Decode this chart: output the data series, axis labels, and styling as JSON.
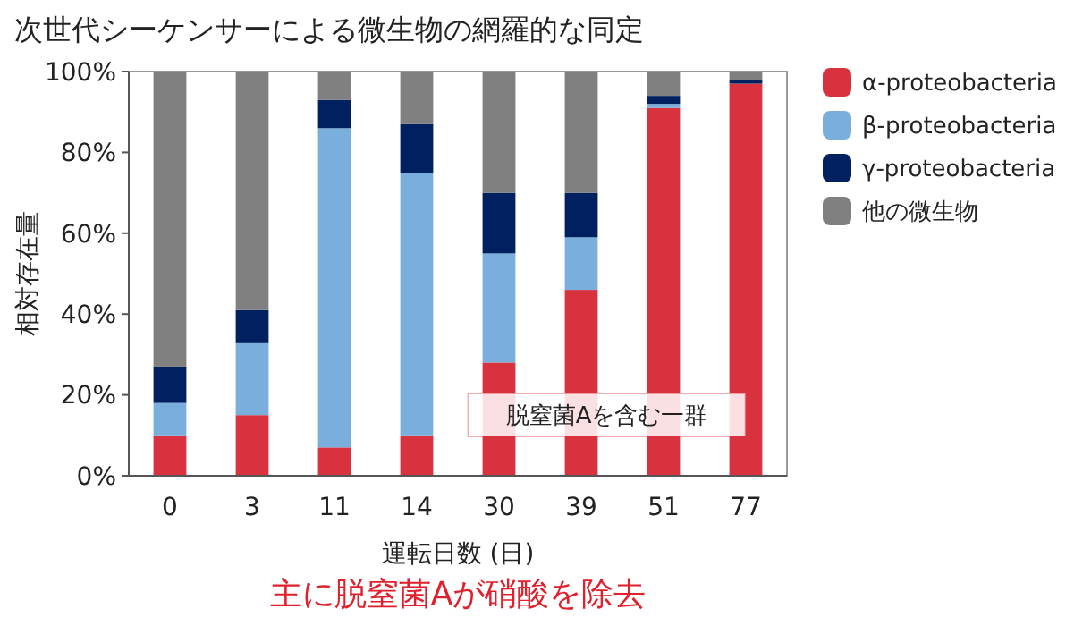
{
  "chart_data": {
    "type": "bar",
    "stacked": true,
    "title": "次世代シーケンサーによる微生物の網羅的な同定",
    "xlabel": "運転日数 (日)",
    "ylabel": "相対存在量",
    "categories": [
      "0",
      "3",
      "11",
      "14",
      "30",
      "39",
      "51",
      "77"
    ],
    "series": [
      {
        "name": "α-proteobacteria",
        "color": "#d9323f",
        "values": [
          10,
          15,
          7,
          10,
          28,
          46,
          91,
          97
        ]
      },
      {
        "name": "β-proteobacteria",
        "color": "#7aaedc",
        "values": [
          8,
          18,
          79,
          65,
          27,
          13,
          1,
          0
        ]
      },
      {
        "name": "γ-proteobacteria",
        "color": "#00205f",
        "values": [
          9,
          8,
          7,
          12,
          15,
          11,
          2,
          1
        ]
      },
      {
        "name": "他の微生物",
        "color": "#808080",
        "values": [
          73,
          59,
          7,
          13,
          30,
          30,
          6,
          2
        ]
      }
    ],
    "ylim": [
      0,
      100
    ],
    "yticks": [
      {
        "value": 0,
        "label": "0%"
      },
      {
        "value": 20,
        "label": "20%"
      },
      {
        "value": 40,
        "label": "40%"
      },
      {
        "value": 60,
        "label": "60%"
      },
      {
        "value": 80,
        "label": "80%"
      },
      {
        "value": 100,
        "label": "100%"
      }
    ],
    "grid": false,
    "legend": "right",
    "annotations": [
      "脱窒菌Aを含む一群",
      "主に脱窒菌Aが硝酸を除去"
    ]
  }
}
